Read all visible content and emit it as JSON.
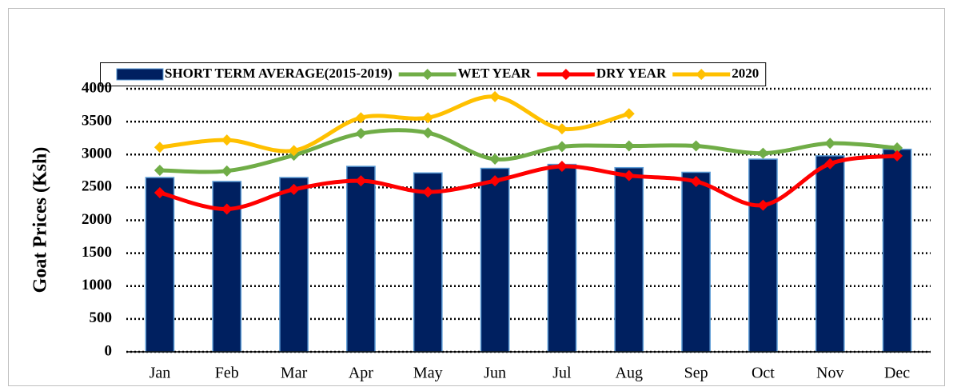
{
  "chart_data": {
    "type": "bar_line",
    "y_axis_label": "Goat Prices (Ksh)",
    "categories": [
      "Jan",
      "Feb",
      "Mar",
      "Apr",
      "May",
      "Jun",
      "Jul",
      "Aug",
      "Sep",
      "Oct",
      "Nov",
      "Dec"
    ],
    "series": [
      {
        "name": "SHORT TERM AVERAGE(2015-2019)",
        "type": "bar",
        "color": "#002060",
        "values": [
          2650,
          2590,
          2650,
          2820,
          2720,
          2790,
          2850,
          2800,
          2730,
          2930,
          2980,
          3080
        ]
      },
      {
        "name": "WET YEAR",
        "type": "line",
        "color": "#70ad47",
        "values": [
          2760,
          2750,
          2990,
          3320,
          3330,
          2930,
          3120,
          3130,
          3130,
          3020,
          3170,
          3100
        ]
      },
      {
        "name": "DRY YEAR",
        "type": "line",
        "color": "#ff0000",
        "values": [
          2420,
          2170,
          2470,
          2600,
          2430,
          2600,
          2820,
          2680,
          2590,
          2230,
          2860,
          2980
        ]
      },
      {
        "name": "2020",
        "type": "line",
        "color": "#ffc000",
        "values": [
          3110,
          3220,
          3060,
          3560,
          3560,
          3880,
          3390,
          3620,
          null,
          null,
          null,
          null
        ]
      }
    ],
    "ylim": [
      0,
      4000
    ],
    "yticks": [
      0,
      500,
      1000,
      1500,
      2000,
      2500,
      3000,
      3500,
      4000
    ],
    "grid": true,
    "legend": "top"
  }
}
